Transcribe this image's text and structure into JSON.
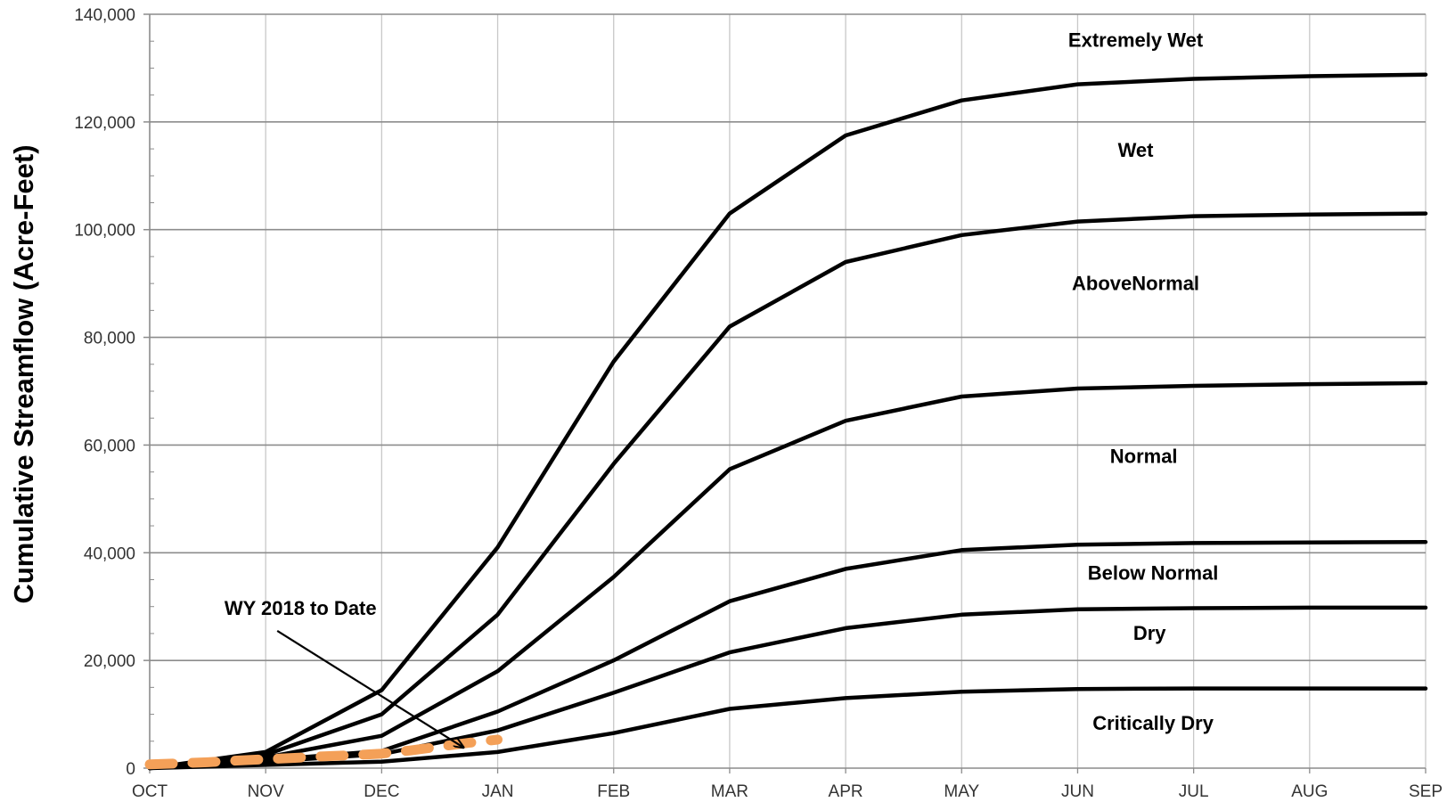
{
  "chart_data": {
    "type": "line",
    "ylabel": "Cumulative Streamflow (Acre-Feet)",
    "xlabel": "",
    "categories": [
      "OCT",
      "NOV",
      "DEC",
      "JAN",
      "FEB",
      "MAR",
      "APR",
      "MAY",
      "JUN",
      "JUL",
      "AUG",
      "SEP"
    ],
    "ylim": [
      0,
      140000
    ],
    "yticks": [
      0,
      20000,
      40000,
      60000,
      80000,
      100000,
      120000,
      140000
    ],
    "ytick_labels": [
      "0",
      "20,000",
      "40,000",
      "60,000",
      "80,000",
      "100,000",
      "120,000",
      "140,000"
    ],
    "grid": true,
    "series": [
      {
        "name": "Extremely Wet",
        "color": "#000000",
        "values": [
          0,
          3000,
          14500,
          41000,
          75500,
          103000,
          117500,
          124000,
          127000,
          128000,
          128500,
          128800
        ]
      },
      {
        "name": "Wet",
        "color": "#000000",
        "values": [
          0,
          2500,
          10000,
          28500,
          56500,
          82000,
          94000,
          99000,
          101500,
          102500,
          102800,
          103000
        ]
      },
      {
        "name": "AboveNormal",
        "color": "#000000",
        "values": [
          0,
          2000,
          6000,
          18000,
          35500,
          55500,
          64500,
          69000,
          70500,
          71000,
          71300,
          71500
        ]
      },
      {
        "name": "Normal",
        "color": "#000000",
        "values": [
          0,
          1500,
          3200,
          10500,
          20000,
          31000,
          37000,
          40500,
          41500,
          41800,
          41900,
          42000
        ]
      },
      {
        "name": "Below Normal",
        "color": "#000000",
        "values": [
          0,
          1200,
          2600,
          7000,
          14000,
          21500,
          26000,
          28500,
          29500,
          29700,
          29800,
          29800
        ]
      },
      {
        "name": "Dry",
        "color": "#000000",
        "values": [
          0,
          600,
          1200,
          3000,
          6500,
          11000,
          13000,
          14200,
          14700,
          14800,
          14800,
          14800
        ]
      },
      {
        "name": "WY 2018 to Date",
        "color": "#F4A058",
        "dashed": true,
        "x": [
          0,
          0.25,
          0.5,
          0.75,
          1,
          1.25,
          1.5,
          1.75,
          2,
          2.25,
          2.5,
          2.75,
          3
        ],
        "values": [
          700,
          900,
          1100,
          1400,
          1650,
          1900,
          2200,
          2400,
          2700,
          3300,
          4000,
          4700,
          5300
        ]
      }
    ],
    "region_labels": [
      {
        "text": "Extremely Wet",
        "month": 8.5,
        "value": 134000
      },
      {
        "text": "Wet",
        "month": 8.5,
        "value": 113500
      },
      {
        "text": "AboveNormal",
        "month": 8.5,
        "value": 88800
      },
      {
        "text": "Normal",
        "month": 8.57,
        "value": 56700
      },
      {
        "text": "Below Normal",
        "month": 8.65,
        "value": 35000
      },
      {
        "text": "Dry",
        "month": 8.62,
        "value": 23800
      },
      {
        "text": "Critically Dry",
        "month": 8.65,
        "value": 7100
      }
    ],
    "annotation": {
      "text": "WY 2018 to Date",
      "label_month": 1.3,
      "label_value": 28500,
      "arrow_from_month": 1.1,
      "arrow_from_value": 25500,
      "arrow_to_month": 2.7,
      "arrow_to_value": 3900
    }
  }
}
